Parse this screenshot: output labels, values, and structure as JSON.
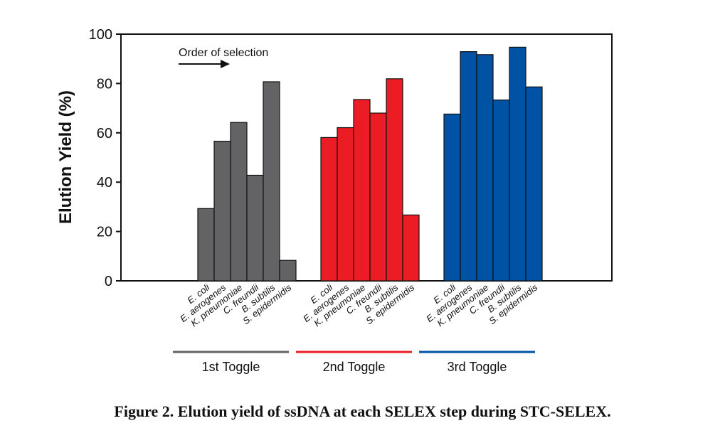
{
  "chart_data": {
    "type": "bar",
    "ylabel": "Elution Yield (%)",
    "xlabel": "",
    "ylim": [
      0,
      100
    ],
    "yticks": [
      0,
      20,
      40,
      60,
      80,
      100
    ],
    "grid": false,
    "annotation": "Order of selection",
    "categories": [
      "E. coli",
      "E. aerogenes",
      "K. pneumoniae",
      "C. freundii",
      "B. subtilis",
      "S. epidermidis"
    ],
    "series": [
      {
        "name": "1st Toggle",
        "color": "#636366",
        "values": [
          29.3,
          56.6,
          64.2,
          42.8,
          80.7,
          8.3
        ]
      },
      {
        "name": "2nd Toggle",
        "color": "#ec1c24",
        "values": [
          58.1,
          62.1,
          73.5,
          68.0,
          81.9,
          26.7
        ]
      },
      {
        "name": "3rd Toggle",
        "color": "#0052a5",
        "values": [
          67.6,
          92.9,
          91.7,
          73.3,
          94.7,
          78.6
        ]
      }
    ]
  },
  "caption": "Figure 2.  Elution yield of ssDNA at each SELEX step during STC-SELEX."
}
